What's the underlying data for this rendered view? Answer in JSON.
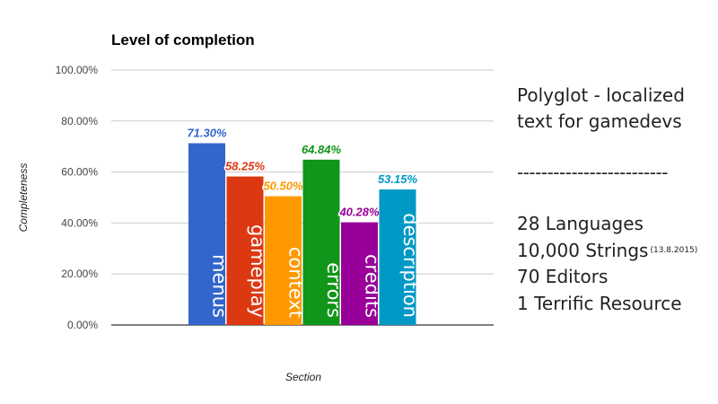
{
  "chart_data": {
    "type": "bar",
    "title": "Level of completion",
    "xlabel": "Section",
    "ylabel": "Completeness",
    "ylim": [
      0,
      100
    ],
    "yticks": [
      "0.00%",
      "20.00%",
      "40.00%",
      "60.00%",
      "80.00%",
      "100.00%"
    ],
    "ytick_values": [
      0,
      20,
      40,
      60,
      80,
      100
    ],
    "grid": true,
    "legend": "none",
    "categories": [
      "menus",
      "gameplay",
      "context",
      "errors",
      "credits",
      "description"
    ],
    "values": [
      71.3,
      58.25,
      50.5,
      64.84,
      40.28,
      53.15
    ],
    "data_labels": [
      "71.30%",
      "58.25%",
      "50.50%",
      "64.84%",
      "40.28%",
      "53.15%"
    ],
    "colors": [
      "#3366cc",
      "#dc3912",
      "#ff9900",
      "#109618",
      "#990099",
      "#0099c6"
    ]
  },
  "side_panel": {
    "heading_line1": "Polyglot - localized",
    "heading_line2": "text for gamedevs",
    "divider": "-------------------------",
    "stats": [
      {
        "text": "28 Languages",
        "note": ""
      },
      {
        "text": "10,000 Strings",
        "note": "(13.8.2015)"
      },
      {
        "text": "70 Editors",
        "note": ""
      },
      {
        "text": "1 Terrific Resource",
        "note": ""
      }
    ]
  }
}
